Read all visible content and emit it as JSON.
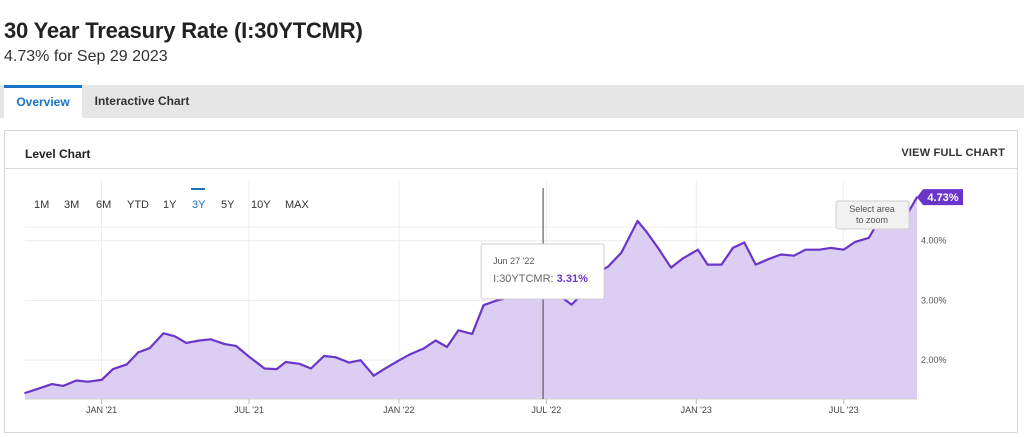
{
  "header": {
    "title": "30 Year Treasury Rate (I:30YTCMR)",
    "subtitle": "4.73% for Sep 29 2023"
  },
  "tabs": [
    {
      "label": "Overview",
      "active": true
    },
    {
      "label": "Interactive Chart",
      "active": false
    }
  ],
  "panel": {
    "title": "Level Chart",
    "view_full": "VIEW FULL CHART"
  },
  "range_buttons": [
    "1M",
    "3M",
    "6M",
    "YTD",
    "1Y",
    "3Y",
    "5Y",
    "10Y",
    "MAX"
  ],
  "active_range": "3Y",
  "zoom_hint": [
    "Select area",
    "to zoom"
  ],
  "tooltip": {
    "date": "Jun 27 '22",
    "series_label": "I:30YTCMR:",
    "value_label": "3.31%",
    "date_value": "2022-06-27",
    "value": 3.31
  },
  "last_value_label": "4.73%",
  "colors": {
    "line": "#6a35c9",
    "area": "#dccdf3",
    "accent": "#1a73c8",
    "badge": "#6a35c9"
  },
  "chart_data": {
    "type": "area",
    "series": [
      {
        "name": "I:30YTCMR",
        "points": [
          [
            "2020-09-29",
            1.45
          ],
          [
            "2020-10-15",
            1.52
          ],
          [
            "2020-11-01",
            1.6
          ],
          [
            "2020-11-15",
            1.57
          ],
          [
            "2020-12-01",
            1.66
          ],
          [
            "2020-12-15",
            1.64
          ],
          [
            "2021-01-01",
            1.67
          ],
          [
            "2021-01-15",
            1.85
          ],
          [
            "2021-02-01",
            1.93
          ],
          [
            "2021-02-15",
            2.13
          ],
          [
            "2021-03-01",
            2.2
          ],
          [
            "2021-03-18",
            2.45
          ],
          [
            "2021-04-01",
            2.4
          ],
          [
            "2021-04-15",
            2.29
          ],
          [
            "2021-05-01",
            2.33
          ],
          [
            "2021-05-15",
            2.35
          ],
          [
            "2021-06-01",
            2.27
          ],
          [
            "2021-06-15",
            2.24
          ],
          [
            "2021-07-01",
            2.06
          ],
          [
            "2021-07-20",
            1.86
          ],
          [
            "2021-08-04",
            1.85
          ],
          [
            "2021-08-15",
            1.97
          ],
          [
            "2021-09-01",
            1.94
          ],
          [
            "2021-09-15",
            1.86
          ],
          [
            "2021-10-01",
            2.07
          ],
          [
            "2021-10-15",
            2.05
          ],
          [
            "2021-11-01",
            1.96
          ],
          [
            "2021-11-15",
            2.0
          ],
          [
            "2021-12-01",
            1.74
          ],
          [
            "2021-12-15",
            1.86
          ],
          [
            "2022-01-03",
            2.01
          ],
          [
            "2022-01-15",
            2.1
          ],
          [
            "2022-02-01",
            2.2
          ],
          [
            "2022-02-15",
            2.33
          ],
          [
            "2022-03-01",
            2.22
          ],
          [
            "2022-03-15",
            2.5
          ],
          [
            "2022-04-01",
            2.44
          ],
          [
            "2022-04-15",
            2.92
          ],
          [
            "2022-05-01",
            3.0
          ],
          [
            "2022-05-15",
            3.05
          ],
          [
            "2022-06-01",
            3.1
          ],
          [
            "2022-06-14",
            3.44
          ],
          [
            "2022-06-27",
            3.31
          ],
          [
            "2022-07-15",
            3.1
          ],
          [
            "2022-08-01",
            2.93
          ],
          [
            "2022-08-15",
            3.12
          ],
          [
            "2022-09-01",
            3.45
          ],
          [
            "2022-09-15",
            3.57
          ],
          [
            "2022-10-01",
            3.8
          ],
          [
            "2022-10-21",
            4.33
          ],
          [
            "2022-11-01",
            4.15
          ],
          [
            "2022-11-15",
            3.88
          ],
          [
            "2022-12-01",
            3.55
          ],
          [
            "2022-12-15",
            3.7
          ],
          [
            "2023-01-03",
            3.85
          ],
          [
            "2023-01-15",
            3.6
          ],
          [
            "2023-02-01",
            3.6
          ],
          [
            "2023-02-15",
            3.88
          ],
          [
            "2023-03-01",
            3.97
          ],
          [
            "2023-03-15",
            3.6
          ],
          [
            "2023-04-01",
            3.7
          ],
          [
            "2023-04-15",
            3.77
          ],
          [
            "2023-05-01",
            3.75
          ],
          [
            "2023-05-15",
            3.85
          ],
          [
            "2023-06-01",
            3.85
          ],
          [
            "2023-06-15",
            3.88
          ],
          [
            "2023-07-01",
            3.85
          ],
          [
            "2023-07-15",
            3.98
          ],
          [
            "2023-08-01",
            4.05
          ],
          [
            "2023-08-15",
            4.38
          ],
          [
            "2023-09-01",
            4.27
          ],
          [
            "2023-09-15",
            4.4
          ],
          [
            "2023-09-29",
            4.73
          ]
        ]
      }
    ],
    "x_ticks": [
      {
        "date": "2021-01-01",
        "label": "JAN '21"
      },
      {
        "date": "2021-07-01",
        "label": "JUL '21"
      },
      {
        "date": "2022-01-01",
        "label": "JAN '22"
      },
      {
        "date": "2022-07-01",
        "label": "JUL '22"
      },
      {
        "date": "2023-01-01",
        "label": "JAN '23"
      },
      {
        "date": "2023-07-01",
        "label": "JUL '23"
      }
    ],
    "y_ticks": [
      {
        "value": 2.0,
        "label": "2.00%"
      },
      {
        "value": 3.0,
        "label": "3.00%"
      },
      {
        "value": 4.0,
        "label": "4.00%"
      }
    ],
    "xlim": [
      "2020-09-29",
      "2023-09-29"
    ],
    "ylim": [
      1.35,
      4.9
    ],
    "grid": true
  }
}
